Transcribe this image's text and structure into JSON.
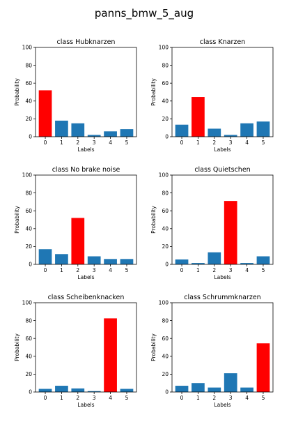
{
  "figure": {
    "title": "panns_bmw_5_aug"
  },
  "colors": {
    "default_bar": "#1f77b4",
    "highlight_bar": "#ff0000"
  },
  "chart_data": [
    {
      "type": "bar",
      "title": "class Hubknarzen",
      "xlabel": "Labels",
      "ylabel": "Probability",
      "categories": [
        "0",
        "1",
        "2",
        "3",
        "4",
        "5"
      ],
      "values": [
        52,
        18,
        15,
        2,
        6,
        8.5
      ],
      "highlight_index": 0,
      "ylim": [
        0,
        100
      ],
      "yticks": [
        0,
        20,
        40,
        60,
        80,
        100
      ]
    },
    {
      "type": "bar",
      "title": "class Knarzen",
      "xlabel": "Labels",
      "ylabel": "Probability",
      "categories": [
        "0",
        "1",
        "2",
        "3",
        "4",
        "5"
      ],
      "values": [
        13.5,
        44.5,
        9,
        2,
        15,
        17
      ],
      "highlight_index": 1,
      "ylim": [
        0,
        100
      ],
      "yticks": [
        0,
        20,
        40,
        60,
        80,
        100
      ]
    },
    {
      "type": "bar",
      "title": "class No brake noise",
      "xlabel": "Labels",
      "ylabel": "Probability",
      "categories": [
        "0",
        "1",
        "2",
        "3",
        "4",
        "5"
      ],
      "values": [
        17,
        11.5,
        52,
        9,
        6,
        6
      ],
      "highlight_index": 2,
      "ylim": [
        0,
        100
      ],
      "yticks": [
        0,
        20,
        40,
        60,
        80,
        100
      ]
    },
    {
      "type": "bar",
      "title": "class Quietschen",
      "xlabel": "Labels",
      "ylabel": "Probability",
      "categories": [
        "0",
        "1",
        "2",
        "3",
        "4",
        "5"
      ],
      "values": [
        5.5,
        1.5,
        13.5,
        71,
        1.5,
        9
      ],
      "highlight_index": 3,
      "ylim": [
        0,
        100
      ],
      "yticks": [
        0,
        20,
        40,
        60,
        80,
        100
      ]
    },
    {
      "type": "bar",
      "title": "class Scheibenknacken",
      "xlabel": "Labels",
      "ylabel": "Probability",
      "categories": [
        "0",
        "1",
        "2",
        "3",
        "4",
        "5"
      ],
      "values": [
        3.5,
        7,
        4,
        1,
        82.5,
        3.5
      ],
      "highlight_index": 4,
      "ylim": [
        0,
        100
      ],
      "yticks": [
        0,
        20,
        40,
        60,
        80,
        100
      ]
    },
    {
      "type": "bar",
      "title": "class Schrummknarzen",
      "xlabel": "Labels",
      "ylabel": "Probability",
      "categories": [
        "0",
        "1",
        "2",
        "3",
        "4",
        "5"
      ],
      "values": [
        7,
        10,
        5,
        21,
        5,
        54.5
      ],
      "highlight_index": 5,
      "ylim": [
        0,
        100
      ],
      "yticks": [
        0,
        20,
        40,
        60,
        80,
        100
      ]
    }
  ]
}
